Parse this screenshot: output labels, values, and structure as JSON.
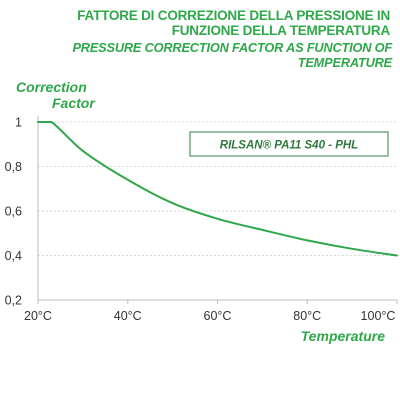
{
  "header": {
    "title_it": "FATTORE DI CORREZIONE DELLA PRESSIONE IN FUNZIONE DELLA TEMPERATURA",
    "title_en": "PRESSURE CORRECTION FACTOR AS FUNCTION OF TEMPERATURE"
  },
  "colors": {
    "title": "#2ea84a",
    "curve": "#2ea84a",
    "legend_border": "#4f9a5f",
    "grid": "#c8c8c8",
    "axis": "#bdbdbd"
  },
  "chart_data": {
    "type": "line",
    "title": "FATTORE DI CORREZIONE DELLA PRESSIONE IN FUNZIONE DELLA TEMPERATURA",
    "subtitle": "PRESSURE CORRECTION FACTOR AS FUNCTION OF TEMPERATURE",
    "ylabel_line1": "Correction",
    "ylabel_line2": "Factor",
    "xlabel": "Temperature",
    "xlim": [
      20,
      100
    ],
    "ylim": [
      0.2,
      1.0
    ],
    "x_ticks": [
      20,
      40,
      60,
      80,
      100
    ],
    "x_tick_labels": [
      "20°C",
      "40°C",
      "60°C",
      "80°C",
      "100°C"
    ],
    "y_ticks": [
      0.2,
      0.4,
      0.6,
      0.8,
      1.0
    ],
    "y_tick_labels": [
      "0,2",
      "0,4",
      "0,6",
      "0,8",
      "1"
    ],
    "grid": "horizontal",
    "legend_position": "top-right",
    "series": [
      {
        "name": "RILSAN® PA11 S40 - PHL",
        "x": [
          20,
          23,
          30,
          40,
          50,
          60,
          70,
          80,
          90,
          100
        ],
        "y": [
          1.0,
          1.0,
          0.87,
          0.74,
          0.635,
          0.565,
          0.515,
          0.468,
          0.43,
          0.4
        ]
      }
    ]
  }
}
